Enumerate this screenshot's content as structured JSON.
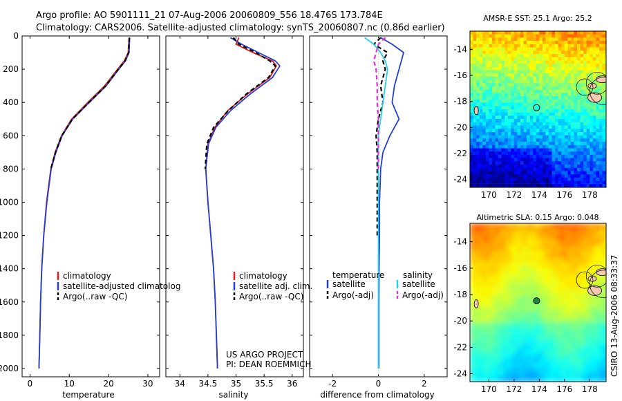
{
  "header": {
    "line1": "Argo profile: AO 5901111_21 07-Aug-2006 20060809_556 18.476S 173.784E",
    "line2": "Climatology: CARS2006. Satellite-adjusted climatology: synTS_20060807.nc (0.86d earlier)"
  },
  "credit": {
    "project": "US ARGO PROJECT",
    "pi": "PI: DEAN ROEMMICH",
    "stamp": "CSIRO 13-Aug-2006 08:33:37"
  },
  "colors": {
    "clim": "#e41a1c",
    "sat": "#1f3fd6",
    "argo": "#000000",
    "sal_sat": "#22d3e6",
    "sal_argo": "#e62ee0",
    "marker": "#1a8a3a"
  },
  "chart_data": [
    {
      "type": "line",
      "id": "temperature",
      "xlabel": "temperature",
      "ylabel": "",
      "xlim": [
        -2,
        33
      ],
      "ylim": [
        2050,
        0
      ],
      "x_ticks": [
        0,
        10,
        20,
        30
      ],
      "x_tick_labels": [
        "0",
        "10",
        "20",
        "30"
      ],
      "y_ticks": [
        0,
        200,
        400,
        600,
        800,
        1000,
        1200,
        1400,
        1600,
        1800,
        2000
      ],
      "y_tick_labels": [
        "0",
        "200",
        "400",
        "600",
        "800",
        "1000",
        "1200",
        "1400",
        "1600",
        "1800",
        "2000"
      ],
      "depth": [
        10,
        50,
        100,
        150,
        200,
        300,
        400,
        500,
        600,
        700,
        800,
        1000,
        1200,
        1400,
        1600,
        1800,
        2000
      ],
      "series": [
        {
          "name": "climatology",
          "style": "solid",
          "color": "#e41a1c",
          "values": [
            25.2,
            25.1,
            25.0,
            24.0,
            22.3,
            19.0,
            14.7,
            10.6,
            8.0,
            6.4,
            5.3,
            4.2,
            3.5,
            3.0,
            2.7,
            2.5,
            2.3
          ]
        },
        {
          "name": "satellite-adjusted climatology",
          "style": "solid",
          "color": "#1f3fd6",
          "values": [
            25.4,
            25.3,
            25.2,
            24.3,
            22.6,
            19.4,
            15.1,
            10.9,
            8.2,
            6.6,
            5.4,
            4.3,
            3.5,
            3.0,
            2.7,
            2.5,
            2.3
          ]
        },
        {
          "name": "Argo(..raw -QC)",
          "style": "dashed",
          "color": "#000000",
          "values": [
            25.3,
            25.2,
            25.1,
            24.2,
            22.5,
            19.3,
            15.0,
            10.8,
            8.1,
            6.5,
            5.3,
            null,
            null,
            null,
            null,
            null,
            null
          ]
        }
      ],
      "legend": [
        "climatology",
        "satellite-adjusted climatology",
        "Argo(..raw -QC)"
      ],
      "legend_display": [
        "climatology",
        "satellite-adjusted climatolog",
        "Argo(..raw -QC)"
      ],
      "legend_loc": "lower-right"
    },
    {
      "type": "line",
      "id": "salinity",
      "xlabel": "salinity",
      "xlim": [
        33.75,
        36.2
      ],
      "ylim": [
        2050,
        0
      ],
      "x_ticks": [
        34,
        34.5,
        35,
        35.5,
        36
      ],
      "x_tick_labels": [
        "34",
        "34.5",
        "35",
        "35.5",
        "36"
      ],
      "depth": [
        10,
        50,
        100,
        150,
        180,
        250,
        350,
        450,
        550,
        650,
        800,
        1000,
        1200,
        1400,
        1600,
        1800,
        2000
      ],
      "series": [
        {
          "name": "climatology",
          "style": "solid",
          "color": "#e41a1c",
          "values": [
            35.05,
            35.0,
            35.3,
            35.65,
            35.72,
            35.6,
            35.2,
            34.85,
            34.62,
            34.5,
            34.46,
            34.5,
            34.55,
            34.6,
            34.63,
            34.65,
            34.67
          ]
        },
        {
          "name": "satellite adj. clim.",
          "style": "solid",
          "color": "#1f3fd6",
          "values": [
            34.9,
            35.1,
            35.4,
            35.7,
            35.78,
            35.65,
            35.25,
            34.9,
            34.64,
            34.51,
            34.46,
            34.5,
            34.55,
            34.6,
            34.63,
            34.65,
            34.67
          ]
        },
        {
          "name": "Argo(..raw -QC)",
          "style": "dashed",
          "color": "#000000",
          "values": [
            34.95,
            35.05,
            35.35,
            35.6,
            35.7,
            35.58,
            35.18,
            34.86,
            34.6,
            34.48,
            34.45,
            null,
            null,
            null,
            null,
            null,
            null
          ]
        }
      ],
      "legend": [
        "climatology",
        "satellite adj. clim.",
        "Argo(..raw -QC)"
      ],
      "legend_loc": "lower-right"
    },
    {
      "type": "line",
      "id": "difference",
      "xlabel": "difference from climatology",
      "xlim": [
        -3,
        3
      ],
      "ylim": [
        2050,
        0
      ],
      "x_ticks": [
        -2,
        0,
        2
      ],
      "x_tick_labels": [
        "-2",
        "0",
        "2"
      ],
      "depth": [
        10,
        50,
        100,
        150,
        200,
        300,
        400,
        500,
        600,
        700,
        800,
        1000,
        1200,
        1400,
        1600,
        1800,
        2000
      ],
      "series": [
        {
          "name": "temperature satellite",
          "style": "solid",
          "color": "#1f3fd6",
          "values": [
            0.1,
            0.6,
            1.1,
            1.0,
            0.9,
            0.7,
            0.6,
            0.9,
            0.5,
            0.2,
            0.1,
            0.05,
            0.05,
            0.03,
            0.02,
            0.02,
            0.02
          ]
        },
        {
          "name": "temperature Argo(-adj)",
          "style": "dashed",
          "color": "#000000",
          "values": [
            0.1,
            -0.2,
            0.4,
            0.2,
            0.3,
            0.1,
            0.2,
            0.0,
            -0.1,
            -0.05,
            -0.05,
            -0.05,
            -0.05,
            null,
            null,
            null,
            null
          ]
        },
        {
          "name": "salinity satellite",
          "style": "solid",
          "color": "#22d3e6",
          "values": [
            -0.6,
            -0.2,
            0.1,
            0.3,
            0.4,
            0.3,
            0.2,
            0.1,
            0.0,
            0.0,
            0.0,
            0.0,
            0.0,
            0.0,
            0.0,
            0.0,
            0.0
          ]
        },
        {
          "name": "salinity Argo(-adj)",
          "style": "dashed",
          "color": "#e62ee0",
          "values": [
            0.3,
            0.0,
            -0.1,
            -0.2,
            -0.1,
            -0.05,
            -0.05,
            0.0,
            0.0,
            0.0,
            0.0,
            null,
            null,
            null,
            null,
            null,
            null
          ]
        }
      ],
      "legend_headers": [
        "temperature",
        "salinity"
      ],
      "legend_left": [
        "satellite",
        "Argo(-adj)"
      ],
      "legend_right": [
        "satellite",
        "Argo(-adj)"
      ],
      "legend_loc": "lower-center"
    },
    {
      "type": "heatmap",
      "id": "sst_map",
      "title": "AMSR-E SST: 25.1 Argo: 25.2",
      "xlim": [
        168.5,
        179.3
      ],
      "ylim": [
        -24.6,
        -12.6
      ],
      "x_ticks": [
        170,
        172,
        174,
        176,
        178
      ],
      "x_tick_labels": [
        "170",
        "172",
        "174",
        "176",
        "178"
      ],
      "y_ticks": [
        -14,
        -16,
        -18,
        -20,
        -22,
        -24
      ],
      "y_tick_labels": [
        "-14",
        "-16",
        "-18",
        "-20",
        "-22",
        "-24"
      ],
      "argo_position": [
        173.784,
        -18.476
      ]
    },
    {
      "type": "heatmap",
      "id": "sla_map",
      "title": "Altimetric SLA: 0.15 Argo: 0.048",
      "xlim": [
        168.5,
        179.3
      ],
      "ylim": [
        -24.6,
        -12.6
      ],
      "x_ticks": [
        170,
        172,
        174,
        176,
        178
      ],
      "x_tick_labels": [
        "170",
        "172",
        "174",
        "176",
        "178"
      ],
      "y_ticks": [
        -14,
        -16,
        -18,
        -20,
        -22,
        -24
      ],
      "y_tick_labels": [
        "-14",
        "-16",
        "-18",
        "-20",
        "-22",
        "-24"
      ],
      "argo_position": [
        173.784,
        -18.476
      ]
    }
  ]
}
